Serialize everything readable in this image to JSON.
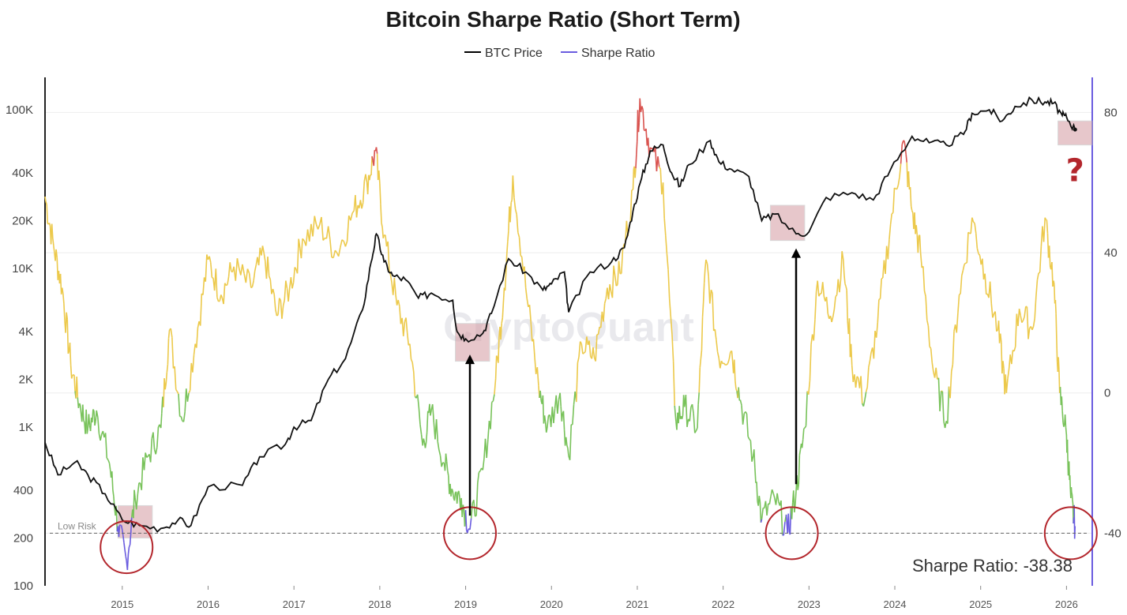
{
  "chart_data": {
    "type": "line",
    "title": "Bitcoin Sharpe Ratio (Short Term)",
    "legend": [
      {
        "name": "BTC Price",
        "color": "#000000"
      },
      {
        "name": "Sharpe Ratio",
        "color": "#6a5cdf"
      }
    ],
    "legend_position": "top-center",
    "watermark": "CryptoQuant",
    "x_ticks": [
      "2015",
      "2016",
      "2017",
      "2018",
      "2019",
      "2020",
      "2021",
      "2022",
      "2023",
      "2024",
      "2025",
      "2026"
    ],
    "xlim": [
      2014.1,
      2026.3
    ],
    "y_left": {
      "scale": "log",
      "ticks": [
        "100K",
        "40K",
        "20K",
        "10K",
        "4K",
        "2K",
        "1K",
        "400",
        "200",
        "100"
      ],
      "tick_values": [
        100000,
        40000,
        20000,
        10000,
        4000,
        2000,
        1000,
        400,
        200,
        100
      ],
      "range": [
        100,
        160000
      ]
    },
    "y_right": {
      "ticks": [
        "80",
        "40",
        "0",
        "-40"
      ],
      "tick_values": [
        80,
        40,
        0,
        -40
      ],
      "range": [
        -55,
        90
      ]
    },
    "low_risk_label": "Low Risk",
    "low_risk_value": -40,
    "sharpe_readout": "Sharpe Ratio: -38.38",
    "question_mark": "?",
    "color_bands": {
      "high": "#d9534f",
      "neutral": "#ecc94b",
      "low": "#78c25a",
      "extreme_low": "#6a5cdf"
    },
    "series": [
      {
        "name": "BTC Price",
        "points": [
          [
            2014.1,
            800
          ],
          [
            2014.25,
            500
          ],
          [
            2014.45,
            600
          ],
          [
            2014.6,
            500
          ],
          [
            2014.8,
            380
          ],
          [
            2015.0,
            260
          ],
          [
            2015.2,
            240
          ],
          [
            2015.45,
            230
          ],
          [
            2015.65,
            260
          ],
          [
            2015.8,
            240
          ],
          [
            2016.0,
            420
          ],
          [
            2016.4,
            430
          ],
          [
            2016.6,
            650
          ],
          [
            2016.9,
            780
          ],
          [
            2017.0,
            1000
          ],
          [
            2017.2,
            1100
          ],
          [
            2017.4,
            2000
          ],
          [
            2017.6,
            2700
          ],
          [
            2017.8,
            5500
          ],
          [
            2017.9,
            11000
          ],
          [
            2017.96,
            16500
          ],
          [
            2018.05,
            11000
          ],
          [
            2018.15,
            9000
          ],
          [
            2018.3,
            8500
          ],
          [
            2018.45,
            6500
          ],
          [
            2018.6,
            7000
          ],
          [
            2018.85,
            6300
          ],
          [
            2018.9,
            4000
          ],
          [
            2019.0,
            3600
          ],
          [
            2019.2,
            3900
          ],
          [
            2019.3,
            5200
          ],
          [
            2019.5,
            11500
          ],
          [
            2019.7,
            9500
          ],
          [
            2019.9,
            7300
          ],
          [
            2020.0,
            8000
          ],
          [
            2020.15,
            9500
          ],
          [
            2020.2,
            5300
          ],
          [
            2020.45,
            9500
          ],
          [
            2020.7,
            11000
          ],
          [
            2020.85,
            13500
          ],
          [
            2020.95,
            23000
          ],
          [
            2021.05,
            37000
          ],
          [
            2021.15,
            55000
          ],
          [
            2021.3,
            60000
          ],
          [
            2021.4,
            40000
          ],
          [
            2021.5,
            33000
          ],
          [
            2021.6,
            45000
          ],
          [
            2021.85,
            64000
          ],
          [
            2021.95,
            47000
          ],
          [
            2022.1,
            42000
          ],
          [
            2022.3,
            38000
          ],
          [
            2022.45,
            20000
          ],
          [
            2022.6,
            22000
          ],
          [
            2022.85,
            16500
          ],
          [
            2023.0,
            17000
          ],
          [
            2023.2,
            28000
          ],
          [
            2023.5,
            30000
          ],
          [
            2023.75,
            27000
          ],
          [
            2023.95,
            42000
          ],
          [
            2024.2,
            68000
          ],
          [
            2024.4,
            62000
          ],
          [
            2024.6,
            60000
          ],
          [
            2024.8,
            70000
          ],
          [
            2024.9,
            95000
          ],
          [
            2025.1,
            100000
          ],
          [
            2025.25,
            85000
          ],
          [
            2025.4,
            105000
          ],
          [
            2025.6,
            115000
          ],
          [
            2025.75,
            112000
          ],
          [
            2025.85,
            110000
          ],
          [
            2025.95,
            92000
          ],
          [
            2026.0,
            90000
          ],
          [
            2026.1,
            75000
          ]
        ]
      },
      {
        "name": "Sharpe Ratio",
        "points": [
          [
            2014.1,
            56
          ],
          [
            2014.2,
            42
          ],
          [
            2014.3,
            30
          ],
          [
            2014.4,
            8
          ],
          [
            2014.5,
            -3
          ],
          [
            2014.6,
            -10
          ],
          [
            2014.7,
            -5
          ],
          [
            2014.85,
            -20
          ],
          [
            2014.95,
            -38
          ],
          [
            2015.05,
            -48
          ],
          [
            2015.15,
            -30
          ],
          [
            2015.3,
            -18
          ],
          [
            2015.45,
            -10
          ],
          [
            2015.55,
            18
          ],
          [
            2015.7,
            -8
          ],
          [
            2015.85,
            14
          ],
          [
            2016.0,
            38
          ],
          [
            2016.15,
            28
          ],
          [
            2016.3,
            36
          ],
          [
            2016.5,
            30
          ],
          [
            2016.65,
            40
          ],
          [
            2016.8,
            22
          ],
          [
            2016.95,
            30
          ],
          [
            2017.1,
            44
          ],
          [
            2017.3,
            48
          ],
          [
            2017.5,
            40
          ],
          [
            2017.7,
            52
          ],
          [
            2017.85,
            60
          ],
          [
            2017.95,
            69
          ],
          [
            2018.05,
            45
          ],
          [
            2018.2,
            25
          ],
          [
            2018.35,
            14
          ],
          [
            2018.5,
            -15
          ],
          [
            2018.6,
            -5
          ],
          [
            2018.75,
            -20
          ],
          [
            2018.85,
            -28
          ],
          [
            2018.95,
            -30
          ],
          [
            2019.05,
            -39
          ],
          [
            2019.2,
            -22
          ],
          [
            2019.35,
            4
          ],
          [
            2019.45,
            30
          ],
          [
            2019.55,
            62
          ],
          [
            2019.7,
            30
          ],
          [
            2019.85,
            2
          ],
          [
            2019.95,
            -10
          ],
          [
            2020.1,
            0
          ],
          [
            2020.2,
            -18
          ],
          [
            2020.35,
            14
          ],
          [
            2020.5,
            10
          ],
          [
            2020.65,
            30
          ],
          [
            2020.8,
            34
          ],
          [
            2020.95,
            58
          ],
          [
            2021.03,
            84
          ],
          [
            2021.15,
            70
          ],
          [
            2021.3,
            60
          ],
          [
            2021.45,
            -8
          ],
          [
            2021.55,
            -4
          ],
          [
            2021.7,
            -10
          ],
          [
            2021.8,
            38
          ],
          [
            2021.95,
            10
          ],
          [
            2022.1,
            12
          ],
          [
            2022.2,
            -2
          ],
          [
            2022.35,
            -18
          ],
          [
            2022.45,
            -36
          ],
          [
            2022.6,
            -30
          ],
          [
            2022.75,
            -40
          ],
          [
            2022.85,
            -28
          ],
          [
            2022.95,
            -10
          ],
          [
            2023.1,
            32
          ],
          [
            2023.25,
            22
          ],
          [
            2023.4,
            38
          ],
          [
            2023.5,
            8
          ],
          [
            2023.65,
            -2
          ],
          [
            2023.8,
            20
          ],
          [
            2023.95,
            48
          ],
          [
            2024.1,
            72
          ],
          [
            2024.2,
            52
          ],
          [
            2024.3,
            40
          ],
          [
            2024.45,
            6
          ],
          [
            2024.6,
            -8
          ],
          [
            2024.75,
            28
          ],
          [
            2024.9,
            50
          ],
          [
            2025.05,
            34
          ],
          [
            2025.2,
            18
          ],
          [
            2025.3,
            0
          ],
          [
            2025.45,
            24
          ],
          [
            2025.6,
            18
          ],
          [
            2025.75,
            50
          ],
          [
            2025.85,
            32
          ],
          [
            2025.92,
            0
          ],
          [
            2026.0,
            -12
          ],
          [
            2026.05,
            -30
          ],
          [
            2026.1,
            -38
          ]
        ]
      }
    ],
    "highlight_boxes": [
      {
        "x": [
          2014.95,
          2015.35
        ],
        "y_price": [
          200,
          320
        ]
      },
      {
        "x": [
          2018.88,
          2019.28
        ],
        "y_price": [
          2600,
          4500
        ]
      },
      {
        "x": [
          2022.55,
          2022.95
        ],
        "y_price": [
          15000,
          25000
        ]
      },
      {
        "x": [
          2025.9,
          2026.3
        ],
        "y_price": [
          60000,
          85000
        ]
      }
    ],
    "circles": [
      {
        "x": 2015.05,
        "y_sharpe": -44
      },
      {
        "x": 2019.05,
        "y_sharpe": -40
      },
      {
        "x": 2022.8,
        "y_sharpe": -40
      },
      {
        "x": 2026.05,
        "y_sharpe": -40
      }
    ],
    "arrows": [
      {
        "x": 2019.05,
        "from_sharpe": -35,
        "to_price": 3000
      },
      {
        "x": 2022.85,
        "from_sharpe": -26,
        "to_price": 14000
      }
    ]
  }
}
